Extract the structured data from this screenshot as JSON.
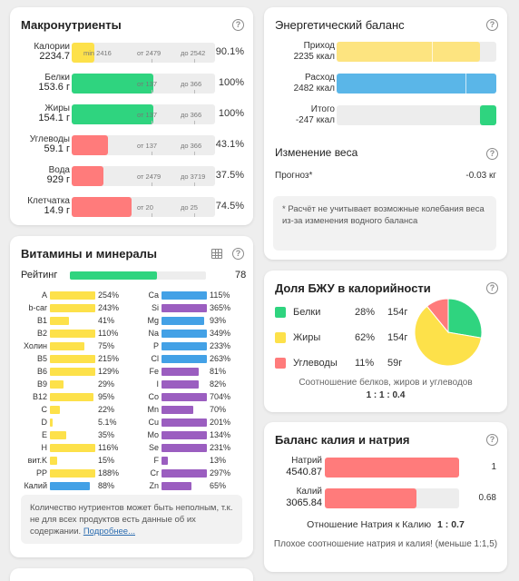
{
  "colors": {
    "green": "#2fd47f",
    "yellow": "#fde14a",
    "red": "#ff7b7b",
    "blue": "#43a1e6",
    "purple": "#9b5ec0",
    "track": "#ededed",
    "lightyellow": "#fde480",
    "lightblue": "#5ab6e8"
  },
  "macros": {
    "title": "Макронутриенты",
    "help": "?",
    "rows": [
      {
        "name": "Калории",
        "amount": "2234.7",
        "fill": 0.16,
        "color": "yellow",
        "hints": [
          "min 2416",
          "от 2479",
          "до 2542"
        ],
        "pct": "90.1%"
      },
      {
        "name": "Белки",
        "amount": "153.6 г",
        "fill": 0.57,
        "color": "green",
        "hints": [
          "",
          "от 137",
          "до 366"
        ],
        "pct": "100%"
      },
      {
        "name": "Жиры",
        "amount": "154.1 г",
        "fill": 0.57,
        "color": "green",
        "hints": [
          "",
          "от 137",
          "до 366"
        ],
        "pct": "100%"
      },
      {
        "name": "Углеводы",
        "amount": "59.1 г",
        "fill": 0.25,
        "color": "red",
        "hints": [
          "",
          "от 137",
          "до 366"
        ],
        "pct": "43.1%"
      },
      {
        "name": "Вода",
        "amount": "929 г",
        "fill": 0.22,
        "color": "red",
        "hints": [
          "",
          "от 2479",
          "до 3719"
        ],
        "pct": "37.5%"
      },
      {
        "name": "Клетчатка",
        "amount": "14.9 г",
        "fill": 0.42,
        "color": "red",
        "hints": [
          "",
          "от 20",
          "до 25"
        ],
        "pct": "74.5%"
      }
    ]
  },
  "energy": {
    "title": "Энергетический баланс",
    "help": "?",
    "income_label": "Приход",
    "income_value": "2235 ккал",
    "expense_label": "Расход",
    "expense_value": "2482 ккал",
    "total_label": "Итого",
    "total_value": "-247 ккал",
    "weight_title": "Изменение веса",
    "forecast_label": "Прогноз*",
    "forecast_value": "-0.03 кг",
    "note": "* Расчёт не учитывает возможные колебания веса из-за изменения водного баланса"
  },
  "vitamins": {
    "title": "Витамины и минералы",
    "help": "?",
    "rating_label": "Рейтинг",
    "rating_value": "78",
    "rating_fill": 0.78,
    "left": [
      {
        "name": "A",
        "pct": "254%",
        "fill": 1.0,
        "color": "yellow"
      },
      {
        "name": "b-car",
        "pct": "243%",
        "fill": 1.0,
        "color": "yellow"
      },
      {
        "name": "B1",
        "pct": "41%",
        "fill": 0.41,
        "color": "yellow"
      },
      {
        "name": "B2",
        "pct": "110%",
        "fill": 1.0,
        "color": "yellow"
      },
      {
        "name": "Холин",
        "pct": "75%",
        "fill": 0.75,
        "color": "yellow"
      },
      {
        "name": "B5",
        "pct": "215%",
        "fill": 1.0,
        "color": "yellow"
      },
      {
        "name": "B6",
        "pct": "129%",
        "fill": 1.0,
        "color": "yellow"
      },
      {
        "name": "B9",
        "pct": "29%",
        "fill": 0.29,
        "color": "yellow"
      },
      {
        "name": "B12",
        "pct": "95%",
        "fill": 0.95,
        "color": "yellow"
      },
      {
        "name": "C",
        "pct": "22%",
        "fill": 0.22,
        "color": "yellow"
      },
      {
        "name": "D",
        "pct": "5.1%",
        "fill": 0.05,
        "color": "yellow"
      },
      {
        "name": "E",
        "pct": "35%",
        "fill": 0.35,
        "color": "yellow"
      },
      {
        "name": "H",
        "pct": "116%",
        "fill": 1.0,
        "color": "yellow"
      },
      {
        "name": "вит.K",
        "pct": "15%",
        "fill": 0.15,
        "color": "yellow"
      },
      {
        "name": "PP",
        "pct": "188%",
        "fill": 1.0,
        "color": "yellow"
      },
      {
        "name": "Калий",
        "pct": "88%",
        "fill": 0.88,
        "color": "blue"
      }
    ],
    "right": [
      {
        "name": "Ca",
        "pct": "115%",
        "fill": 1.0,
        "color": "blue"
      },
      {
        "name": "Si",
        "pct": "365%",
        "fill": 1.0,
        "color": "purple"
      },
      {
        "name": "Mg",
        "pct": "93%",
        "fill": 0.93,
        "color": "blue"
      },
      {
        "name": "Na",
        "pct": "349%",
        "fill": 1.0,
        "color": "blue"
      },
      {
        "name": "P",
        "pct": "233%",
        "fill": 1.0,
        "color": "blue"
      },
      {
        "name": "Cl",
        "pct": "263%",
        "fill": 1.0,
        "color": "blue"
      },
      {
        "name": "Fe",
        "pct": "81%",
        "fill": 0.81,
        "color": "purple"
      },
      {
        "name": "I",
        "pct": "82%",
        "fill": 0.82,
        "color": "purple"
      },
      {
        "name": "Co",
        "pct": "704%",
        "fill": 1.0,
        "color": "purple"
      },
      {
        "name": "Mn",
        "pct": "70%",
        "fill": 0.7,
        "color": "purple"
      },
      {
        "name": "Cu",
        "pct": "201%",
        "fill": 1.0,
        "color": "purple"
      },
      {
        "name": "Mo",
        "pct": "134%",
        "fill": 1.0,
        "color": "purple"
      },
      {
        "name": "Se",
        "pct": "231%",
        "fill": 1.0,
        "color": "purple"
      },
      {
        "name": "F",
        "pct": "13%",
        "fill": 0.13,
        "color": "purple"
      },
      {
        "name": "Cr",
        "pct": "297%",
        "fill": 1.0,
        "color": "purple"
      },
      {
        "name": "Zn",
        "pct": "65%",
        "fill": 0.65,
        "color": "purple"
      }
    ],
    "note": "Количество нутриентов может быть неполным, т.к. не для всех продуктов есть данные об их содержании.",
    "more_link": "Подробнее..."
  },
  "bju": {
    "title": "Доля БЖУ в калорийности",
    "help": "?",
    "rows": [
      {
        "name": "Белки",
        "pct": "28%",
        "grams": "154г",
        "color": "green"
      },
      {
        "name": "Жиры",
        "pct": "62%",
        "grams": "154г",
        "color": "yellow"
      },
      {
        "name": "Углеводы",
        "pct": "11%",
        "grams": "59г",
        "color": "red"
      }
    ],
    "ratio_text": "Соотношение белков, жиров и углеводов",
    "ratio_value": "1 : 1 : 0.4",
    "chart_data": {
      "type": "pie",
      "categories": [
        "Белки",
        "Жиры",
        "Углеводы"
      ],
      "values": [
        28,
        62,
        11
      ]
    }
  },
  "potassium": {
    "title": "Баланс калия и натрия",
    "help": "?",
    "sodium_label": "Натрий",
    "sodium_value": "4540.87",
    "sodium_ratio": "1",
    "sodium_fill": 1.0,
    "potassium_label": "Калий",
    "potassium_value": "3065.84",
    "potassium_ratio": "0.68",
    "potassium_fill": 0.68,
    "relation_label": "Отношение Натрия к Калию",
    "relation_value": "1 : 0.7",
    "warning": "Плохое соотношение натрия и калия! (меньше 1:1,5)"
  }
}
